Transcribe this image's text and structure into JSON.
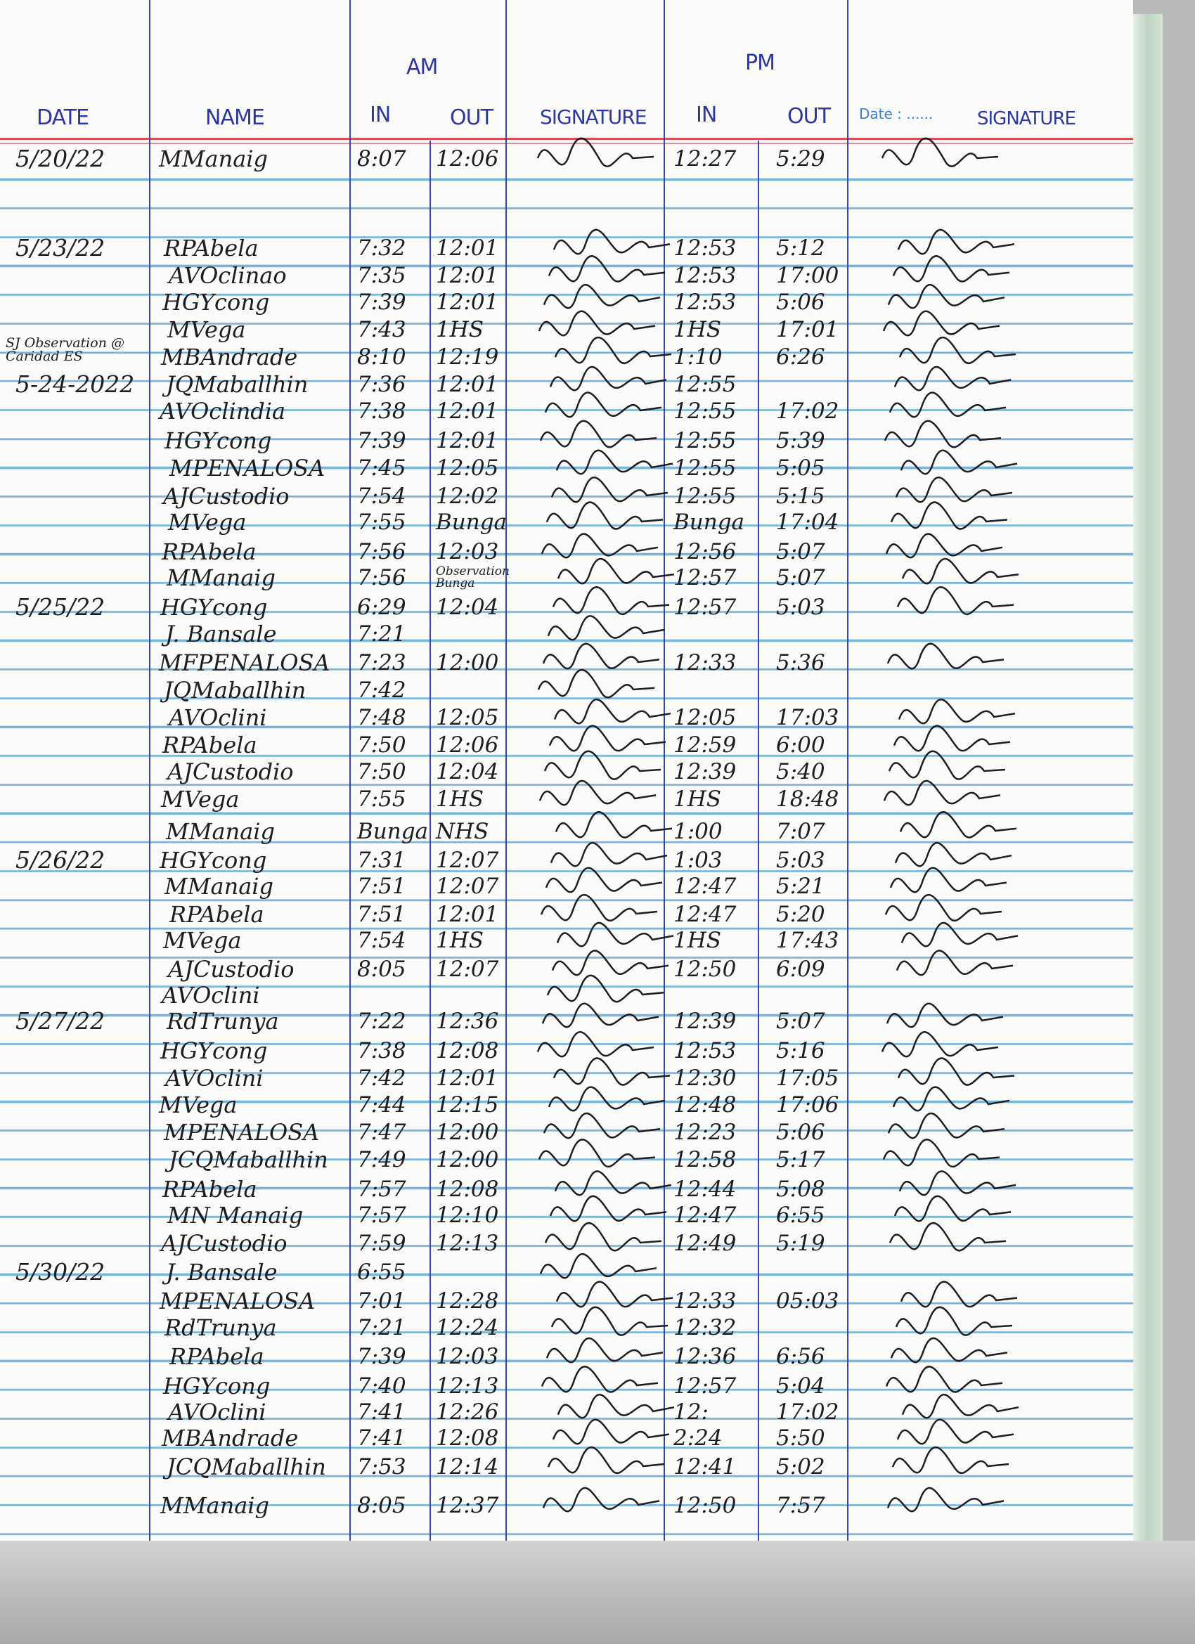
{
  "header": {
    "date": "DATE",
    "name": "NAME",
    "am": "AM",
    "pm": "PM",
    "am_in": "IN",
    "am_out": "OUT",
    "am_signature": "SIGNATURE",
    "pm_in": "IN",
    "pm_out": "OUT",
    "date_field_label": "Date : ......",
    "pm_signature": "SIGNATURE"
  },
  "colors": {
    "ink": "#1d1d22",
    "header_ink": "#2b37a8",
    "rule_blue": "#79b6dc",
    "margin_red": "#e04a5a"
  },
  "entries": [
    {
      "date": "5/20/22",
      "name": "MManaig",
      "am_in": "8:07",
      "am_out": "12:06",
      "pm_in": "12:27",
      "pm_out": "5:29"
    },
    {
      "date": "5/23/22",
      "name": "RPAbela",
      "am_in": "7:32",
      "am_out": "12:01",
      "pm_in": "12:53",
      "pm_out": "5:12"
    },
    {
      "date": "",
      "name": "AVOclinao",
      "am_in": "7:35",
      "am_out": "12:01",
      "pm_in": "12:53",
      "pm_out": "17:00"
    },
    {
      "date": "",
      "name": "HGYcong",
      "am_in": "7:39",
      "am_out": "12:01",
      "pm_in": "12:53",
      "pm_out": "5:06"
    },
    {
      "date": "",
      "name": "MVega",
      "am_in": "7:43",
      "am_out": "1HS",
      "pm_in": "1HS",
      "pm_out": "17:01"
    },
    {
      "date": "",
      "note": "SJ Observation @ Caridad ES",
      "name": "MBAndrade",
      "am_in": "8:10",
      "am_out": "12:19",
      "pm_in": "1:10",
      "pm_out": "6:26"
    },
    {
      "date": "5-24-2022",
      "name": "JQMaballhin",
      "am_in": "7:36",
      "am_out": "12:01",
      "pm_in": "12:55",
      "pm_out": ""
    },
    {
      "date": "",
      "name": "AVOclindia",
      "am_in": "7:38",
      "am_out": "12:01",
      "pm_in": "12:55",
      "pm_out": "17:02"
    },
    {
      "date": "",
      "name": "HGYcong",
      "am_in": "7:39",
      "am_out": "12:01",
      "pm_in": "12:55",
      "pm_out": "5:39"
    },
    {
      "date": "",
      "name": "MPENALOSA",
      "am_in": "7:45",
      "am_out": "12:05",
      "pm_in": "12:55",
      "pm_out": "5:05"
    },
    {
      "date": "",
      "name": "AJCustodio",
      "am_in": "7:54",
      "am_out": "12:02",
      "pm_in": "12:55",
      "pm_out": "5:15"
    },
    {
      "date": "",
      "name": "MVega",
      "am_in": "7:55",
      "am_out": "Bunga",
      "pm_in": "Bunga",
      "pm_out": "17:04"
    },
    {
      "date": "",
      "name": "RPAbela",
      "am_in": "7:56",
      "am_out": "12:03",
      "pm_in": "12:56",
      "pm_out": "5:07"
    },
    {
      "date": "",
      "name": "MManaig",
      "am_in": "7:56",
      "am_out": "Observation Bunga",
      "pm_in": "12:57",
      "pm_out": "5:07"
    },
    {
      "date": "5/25/22",
      "name": "HGYcong",
      "am_in": "6:29",
      "am_out": "12:04",
      "pm_in": "12:57",
      "pm_out": "5:03"
    },
    {
      "date": "",
      "name": "J. Bansale",
      "am_in": "7:21",
      "am_out": "",
      "pm_in": "",
      "pm_out": ""
    },
    {
      "date": "",
      "name": "MFPENALOSA",
      "am_in": "7:23",
      "am_out": "12:00",
      "pm_in": "12:33",
      "pm_out": "5:36"
    },
    {
      "date": "",
      "name": "JQMaballhin",
      "am_in": "7:42",
      "am_out": "",
      "pm_in": "",
      "pm_out": ""
    },
    {
      "date": "",
      "name": "AVOclini",
      "am_in": "7:48",
      "am_out": "12:05",
      "pm_in": "12:05",
      "pm_out": "17:03"
    },
    {
      "date": "",
      "name": "RPAbela",
      "am_in": "7:50",
      "am_out": "12:06",
      "pm_in": "12:59",
      "pm_out": "6:00"
    },
    {
      "date": "",
      "name": "AJCustodio",
      "am_in": "7:50",
      "am_out": "12:04",
      "pm_in": "12:39",
      "pm_out": "5:40"
    },
    {
      "date": "",
      "name": "MVega",
      "am_in": "7:55",
      "am_out": "1HS",
      "pm_in": "1HS",
      "pm_out": "18:48"
    },
    {
      "date": "",
      "name": "MManaig",
      "am_in": "Bunga",
      "am_out": "NHS",
      "pm_in": "1:00",
      "pm_out": "7:07"
    },
    {
      "date": "5/26/22",
      "name": "HGYcong",
      "am_in": "7:31",
      "am_out": "12:07",
      "pm_in": "1:03",
      "pm_out": "5:03"
    },
    {
      "date": "",
      "name": "MManaig",
      "am_in": "7:51",
      "am_out": "12:07",
      "pm_in": "12:47",
      "pm_out": "5:21"
    },
    {
      "date": "",
      "name": "RPAbela",
      "am_in": "7:51",
      "am_out": "12:01",
      "pm_in": "12:47",
      "pm_out": "5:20"
    },
    {
      "date": "",
      "name": "MVega",
      "am_in": "7:54",
      "am_out": "1HS",
      "pm_in": "1HS",
      "pm_out": "17:43"
    },
    {
      "date": "",
      "name": "AJCustodio",
      "am_in": "8:05",
      "am_out": "12:07",
      "pm_in": "12:50",
      "pm_out": "6:09"
    },
    {
      "date": "",
      "name": "AVOclini",
      "am_in": "",
      "am_out": "",
      "pm_in": "",
      "pm_out": ""
    },
    {
      "date": "5/27/22",
      "name": "RdTrunya",
      "am_in": "7:22",
      "am_out": "12:36",
      "pm_in": "12:39",
      "pm_out": "5:07"
    },
    {
      "date": "",
      "name": "HGYcong",
      "am_in": "7:38",
      "am_out": "12:08",
      "pm_in": "12:53",
      "pm_out": "5:16"
    },
    {
      "date": "",
      "name": "AVOclini",
      "am_in": "7:42",
      "am_out": "12:01",
      "pm_in": "12:30",
      "pm_out": "17:05"
    },
    {
      "date": "",
      "name": "MVega",
      "am_in": "7:44",
      "am_out": "12:15",
      "pm_in": "12:48",
      "pm_out": "17:06"
    },
    {
      "date": "",
      "name": "MPENALOSA",
      "am_in": "7:47",
      "am_out": "12:00",
      "pm_in": "12:23",
      "pm_out": "5:06"
    },
    {
      "date": "",
      "name": "JCQMaballhin",
      "am_in": "7:49",
      "am_out": "12:00",
      "pm_in": "12:58",
      "pm_out": "5:17"
    },
    {
      "date": "",
      "name": "RPAbela",
      "am_in": "7:57",
      "am_out": "12:08",
      "pm_in": "12:44",
      "pm_out": "5:08"
    },
    {
      "date": "",
      "name": "MN Manaig",
      "am_in": "7:57",
      "am_out": "12:10",
      "pm_in": "12:47",
      "pm_out": "6:55"
    },
    {
      "date": "",
      "name": "AJCustodio",
      "am_in": "7:59",
      "am_out": "12:13",
      "pm_in": "12:49",
      "pm_out": "5:19"
    },
    {
      "date": "5/30/22",
      "name": "J. Bansale",
      "am_in": "6:55",
      "am_out": "",
      "pm_in": "",
      "pm_out": ""
    },
    {
      "date": "",
      "name": "MPENALOSA",
      "am_in": "7:01",
      "am_out": "12:28",
      "pm_in": "12:33",
      "pm_out": "05:03"
    },
    {
      "date": "",
      "name": "RdTrunya",
      "am_in": "7:21",
      "am_out": "12:24",
      "pm_in": "12:32",
      "pm_out": ""
    },
    {
      "date": "",
      "name": "RPAbela",
      "am_in": "7:39",
      "am_out": "12:03",
      "pm_in": "12:36",
      "pm_out": "6:56"
    },
    {
      "date": "",
      "name": "HGYcong",
      "am_in": "7:40",
      "am_out": "12:13",
      "pm_in": "12:57",
      "pm_out": "5:04"
    },
    {
      "date": "",
      "name": "AVOclini",
      "am_in": "7:41",
      "am_out": "12:26",
      "pm_in": "12:",
      "pm_out": "17:02"
    },
    {
      "date": "",
      "name": "MBAndrade",
      "am_in": "7:41",
      "am_out": "12:08",
      "pm_in": "2:24",
      "pm_out": "5:50"
    },
    {
      "date": "",
      "name": "JCQMaballhin",
      "am_in": "7:53",
      "am_out": "12:14",
      "pm_in": "12:41",
      "pm_out": "5:02"
    },
    {
      "date": "",
      "name": "MManaig",
      "am_in": "8:05",
      "am_out": "12:37",
      "pm_in": "12:50",
      "pm_out": "7:57"
    }
  ]
}
